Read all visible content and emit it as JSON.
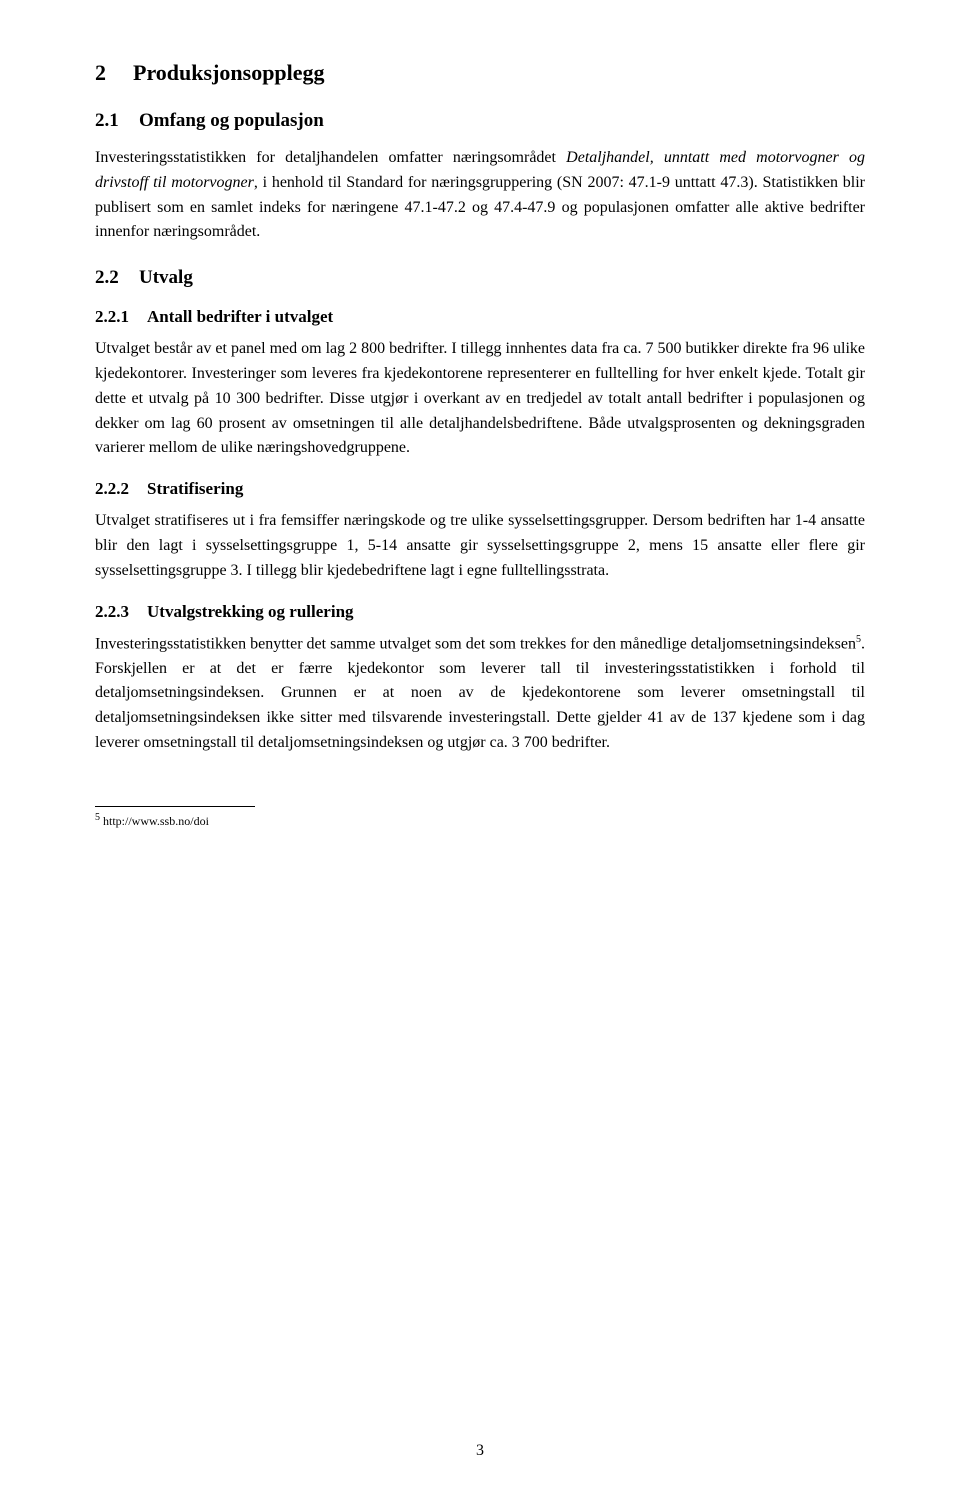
{
  "headings": {
    "h1_num": "2",
    "h1_text": "Produksjonsopplegg",
    "h2_1_num": "2.1",
    "h2_1_text": "Omfang og populasjon",
    "h2_2_num": "2.2",
    "h2_2_text": "Utvalg",
    "h3_1_num": "2.2.1",
    "h3_1_text": "Antall bedrifter i utvalget",
    "h3_2_num": "2.2.2",
    "h3_2_text": "Stratifisering",
    "h3_3_num": "2.2.3",
    "h3_3_text": "Utvalgstrekking og rullering"
  },
  "para1_a": "Investeringsstatistikken for detaljhandelen omfatter næringsområdet ",
  "para1_b": "Detaljhandel, unntatt med motorvogner og drivstoff til motorvogner",
  "para1_c": ", i henhold til Standard for næringsgruppering (SN 2007: 47.1-9 unttatt 47.3). Statistikken blir publisert som en samlet indeks for næringene 47.1-47.2 og 47.4-47.9 og populasjonen omfatter alle aktive bedrifter innenfor næringsområdet.",
  "para2": "Utvalget består av et panel med om lag 2 800 bedrifter. I tillegg innhentes data fra ca. 7 500 butikker direkte fra 96 ulike kjedekontorer. Investeringer som leveres fra kjedekontorene representerer en fulltelling for hver enkelt kjede. Totalt gir dette et utvalg på 10 300 bedrifter. Disse utgjør i overkant av en tredjedel av totalt antall bedrifter i populasjonen og dekker om lag 60 prosent av omsetningen til alle detaljhandelsbedriftene. Både utvalgsprosenten og dekningsgraden varierer mellom de ulike næringshovedgruppene.",
  "para3": "Utvalget stratifiseres ut i fra femsiffer næringskode og tre ulike sysselsettingsgrupper. Dersom bedriften har 1-4 ansatte blir den lagt i sysselsettingsgruppe 1, 5-14 ansatte gir sysselsettingsgruppe 2, mens 15 ansatte eller flere gir sysselsettingsgruppe 3. I tillegg blir kjedebedriftene lagt i egne fulltellingsstrata.",
  "para4_a": "Investeringsstatistikken benytter det samme utvalget som det som trekkes for den månedlige detaljomsetningsindeksen",
  "para4_sup": "5",
  "para4_b": ". Forskjellen er at det er færre kjedekontor som leverer tall til investeringsstatistikken i forhold til detaljomsetningsindeksen. Grunnen er at noen av de kjedekontorene som leverer omsetningstall til detaljomsetningsindeksen ikke sitter med tilsvarende investeringstall. Dette gjelder 41 av de 137 kjedene som i dag leverer omsetningstall til detaljomsetningsindeksen og utgjør ca. 3 700 bedrifter.",
  "footnote_sup": "5",
  "footnote_text": " http://www.ssb.no/doi",
  "page_number": "3"
}
